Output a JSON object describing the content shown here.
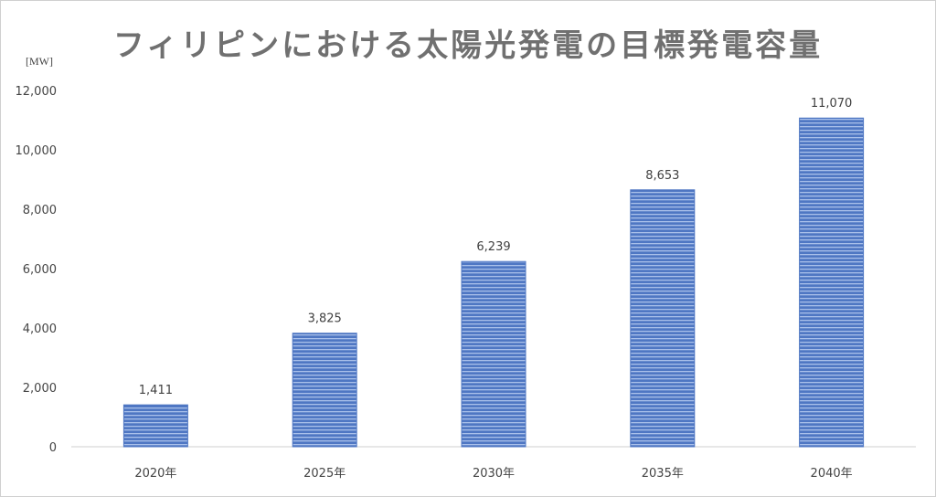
{
  "chart_data": {
    "type": "bar",
    "title": "フィリピンにおける太陽光発電の目標発電容量",
    "ylabel": "[MW]",
    "xlabel": "",
    "categories": [
      "2020年",
      "2025年",
      "2030年",
      "2035年",
      "2040年"
    ],
    "values": [
      1411,
      3825,
      6239,
      8653,
      11070
    ],
    "value_labels": [
      "1,411",
      "3,825",
      "6,239",
      "8,653",
      "11,070"
    ],
    "ylim": [
      0,
      12000
    ],
    "yticks": [
      0,
      2000,
      4000,
      6000,
      8000,
      10000,
      12000
    ],
    "ytick_labels": [
      "0",
      "2,000",
      "4,000",
      "6,000",
      "8,000",
      "10,000",
      "12,000"
    ],
    "grid": false,
    "legend": "none",
    "bar_color": "#4f77c3",
    "bar_stripe_color": "#a9c0ea"
  }
}
